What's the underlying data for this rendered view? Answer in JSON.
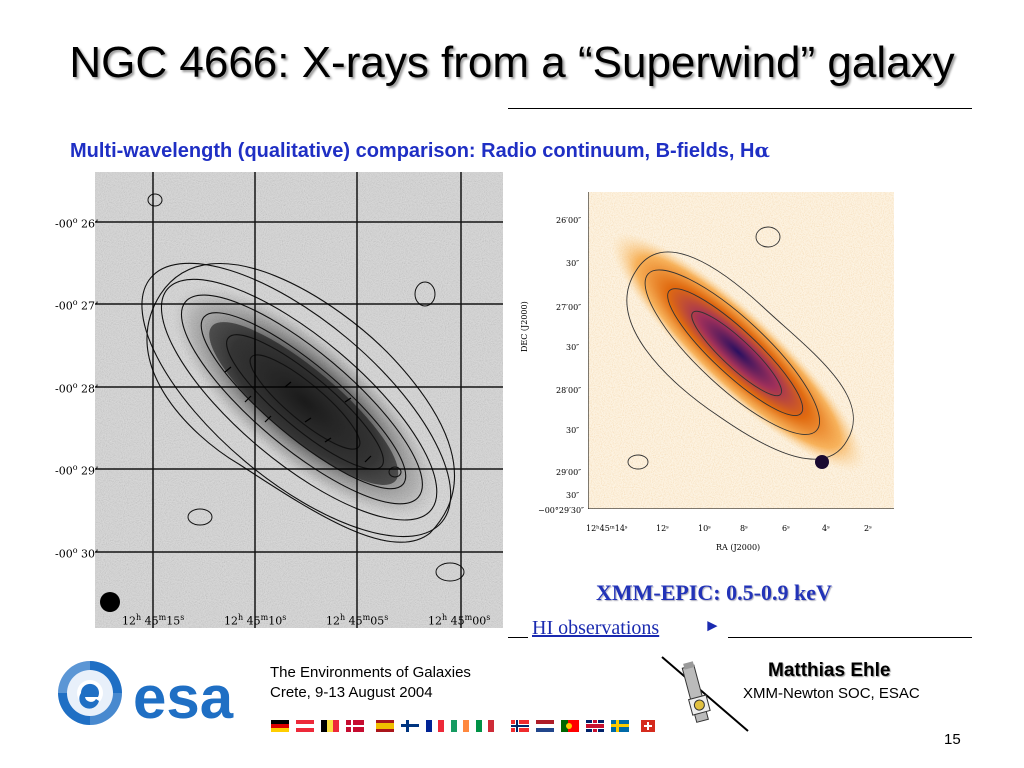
{
  "slide": {
    "title": "NGC 4666: X-rays from a “Superwind” galaxy",
    "subtitle_text": "Multi-wavelength (qualitative) comparison: Radio continuum, B-fields, H",
    "subtitle_greek": "α",
    "page_number": "15"
  },
  "left_map": {
    "y_ticks": [
      {
        "deg": "-00",
        "sup": "o",
        "min": "26",
        "apos": "’"
      },
      {
        "deg": "-00",
        "sup": "o",
        "min": "27",
        "apos": "’"
      },
      {
        "deg": "-00",
        "sup": "o",
        "min": "28",
        "apos": "’"
      },
      {
        "deg": "-00",
        "sup": "o",
        "min": "29",
        "apos": "’"
      },
      {
        "deg": "-00",
        "sup": "o",
        "min": "30",
        "apos": "’"
      }
    ],
    "x_ticks": [
      {
        "h": "12",
        "m": "45",
        "s": "15"
      },
      {
        "h": "12",
        "m": "45",
        "s": "10"
      },
      {
        "h": "12",
        "m": "45",
        "s": "05"
      },
      {
        "h": "12",
        "m": "45",
        "s": "00"
      }
    ],
    "unit_h": "h",
    "unit_m": "m",
    "unit_s": "s"
  },
  "right_map": {
    "y_label": "DEC (J2000)",
    "x_label": "RA (J2000)",
    "y_ticks": [
      "26′00″",
      "30″",
      "27′00″",
      "30″",
      "28′00″",
      "30″",
      "29′00″",
      "30″",
      "−00°29′30″"
    ],
    "x_ticks": [
      "12ʰ45ᵐ14ˢ",
      "12ˢ",
      "10ˢ",
      "8ˢ",
      "6ˢ",
      "4ˢ",
      "2ˢ"
    ]
  },
  "labels": {
    "xmm_label": "XMM-EPIC: 0.5-0.9 keV",
    "hi_link": "HI observations",
    "hi_arrow": "►"
  },
  "footer": {
    "logo_text": "esa",
    "conference_name": "The Environments of Galaxies",
    "conference_place": "Crete, 9-13 August 2004",
    "author_name": "Matthias Ehle",
    "author_affiliation": "XMM-Newton SOC, ESAC"
  },
  "colors": {
    "title_shadow": "#9a9a9a",
    "subtitle": "#1f2fc4",
    "xmm_label": "#2233b8",
    "link": "#1a2ab0",
    "esa_blue": "#1f6fc4"
  }
}
